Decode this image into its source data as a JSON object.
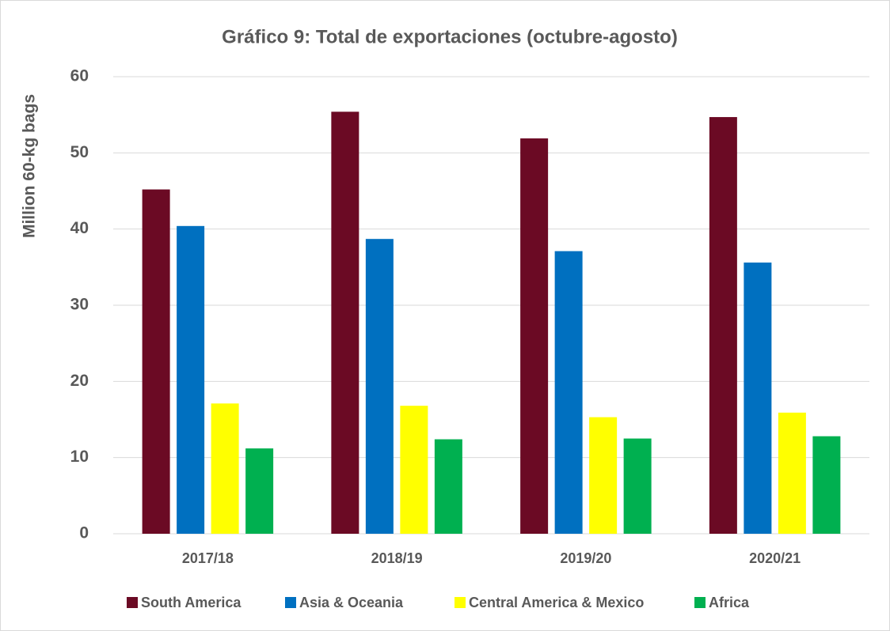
{
  "chart_data": {
    "type": "bar",
    "title": "Gráfico 9: Total de exportaciones (octubre-agosto)",
    "y_label": "Million 60-kg bags",
    "categories": [
      "2017/18",
      "2018/19",
      "2019/20",
      "2020/21"
    ],
    "series": [
      {
        "name": "South America",
        "color": "#6b0a24",
        "values": [
          45.2,
          55.4,
          51.9,
          54.7
        ]
      },
      {
        "name": "Asia & Oceania",
        "color": "#0070c0",
        "values": [
          40.4,
          38.7,
          37.1,
          35.6
        ]
      },
      {
        "name": "Central America & Mexico",
        "color": "#ffff00",
        "values": [
          17.1,
          16.8,
          15.3,
          15.9
        ]
      },
      {
        "name": "Africa",
        "color": "#00b050",
        "values": [
          11.2,
          12.4,
          12.5,
          12.8
        ]
      }
    ],
    "ylim": [
      0,
      60
    ],
    "yticks": [
      0,
      10,
      20,
      30,
      40,
      50,
      60
    ],
    "grid": true,
    "legend": "bottom"
  }
}
